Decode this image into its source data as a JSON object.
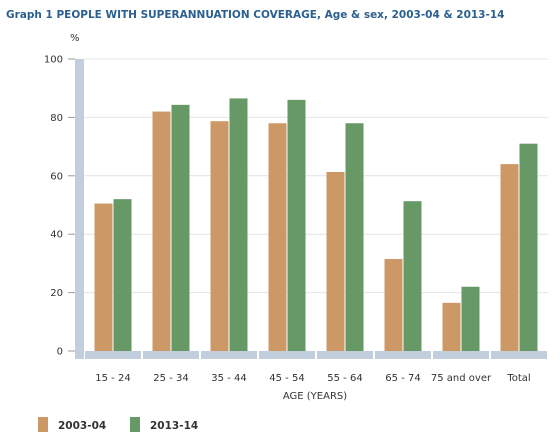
{
  "chart_data": {
    "type": "bar",
    "title": "Graph 1 PEOPLE WITH SUPERANNUATION COVERAGE, Age & sex, 2003-04 & 2013-14",
    "ylabel": "%",
    "xlabel": "AGE (YEARS)",
    "ylim": [
      0,
      100
    ],
    "yticks": [
      0,
      20,
      40,
      60,
      80,
      100
    ],
    "grid": true,
    "legend_position": "bottom-left",
    "categories": [
      "15 - 24",
      "25 - 34",
      "35 - 44",
      "45 - 54",
      "55 - 64",
      "65 - 74",
      "75 and over",
      "Total"
    ],
    "series": [
      {
        "name": "2003-04",
        "color": "#cc9966",
        "values": [
          50.5,
          82,
          78.7,
          78,
          61.3,
          31.5,
          16.5,
          64
        ]
      },
      {
        "name": "2013-14",
        "color": "#669966",
        "values": [
          52,
          84.3,
          86.5,
          86,
          78,
          51.3,
          22,
          71
        ]
      }
    ],
    "colors": {
      "axis_band": "#c2cedb",
      "grid": "#e4e4e4"
    }
  }
}
